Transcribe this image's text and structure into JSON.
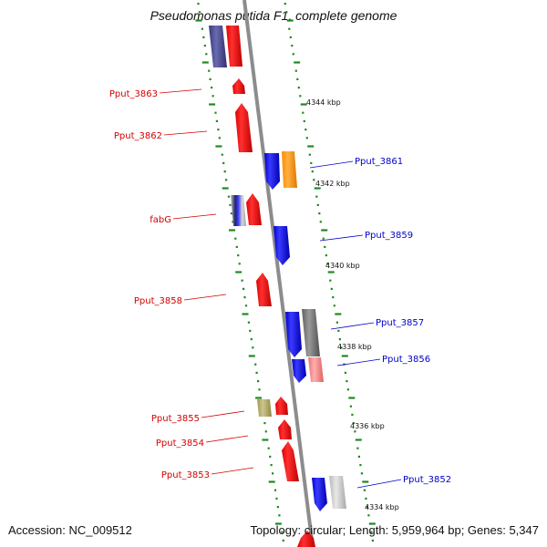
{
  "title": "Pseudomonas putida F1, complete genome",
  "footer": {
    "accession": "Accession: NC_009512",
    "topology": "Topology: circular; Length: 5,959,964 bp; Genes: 5,347"
  },
  "colors": {
    "backbone": "#8c8c8c",
    "tick": "#1f8a1f",
    "left_label": "#d40000",
    "right_label": "#0000c8"
  },
  "scale_labels": [
    "4344 kbp",
    "4342 kbp",
    "4340 kbp",
    "4338 kbp",
    "4336 kbp",
    "4334 kbp"
  ],
  "left_gene_labels": [
    "Pput_3863",
    "Pput_3862",
    "fabG",
    "Pput_3858",
    "Pput_3855",
    "Pput_3854",
    "Pput_3853"
  ],
  "right_gene_labels": [
    "Pput_3861",
    "Pput_3859",
    "Pput_3857",
    "Pput_3856",
    "Pput_3852"
  ]
}
